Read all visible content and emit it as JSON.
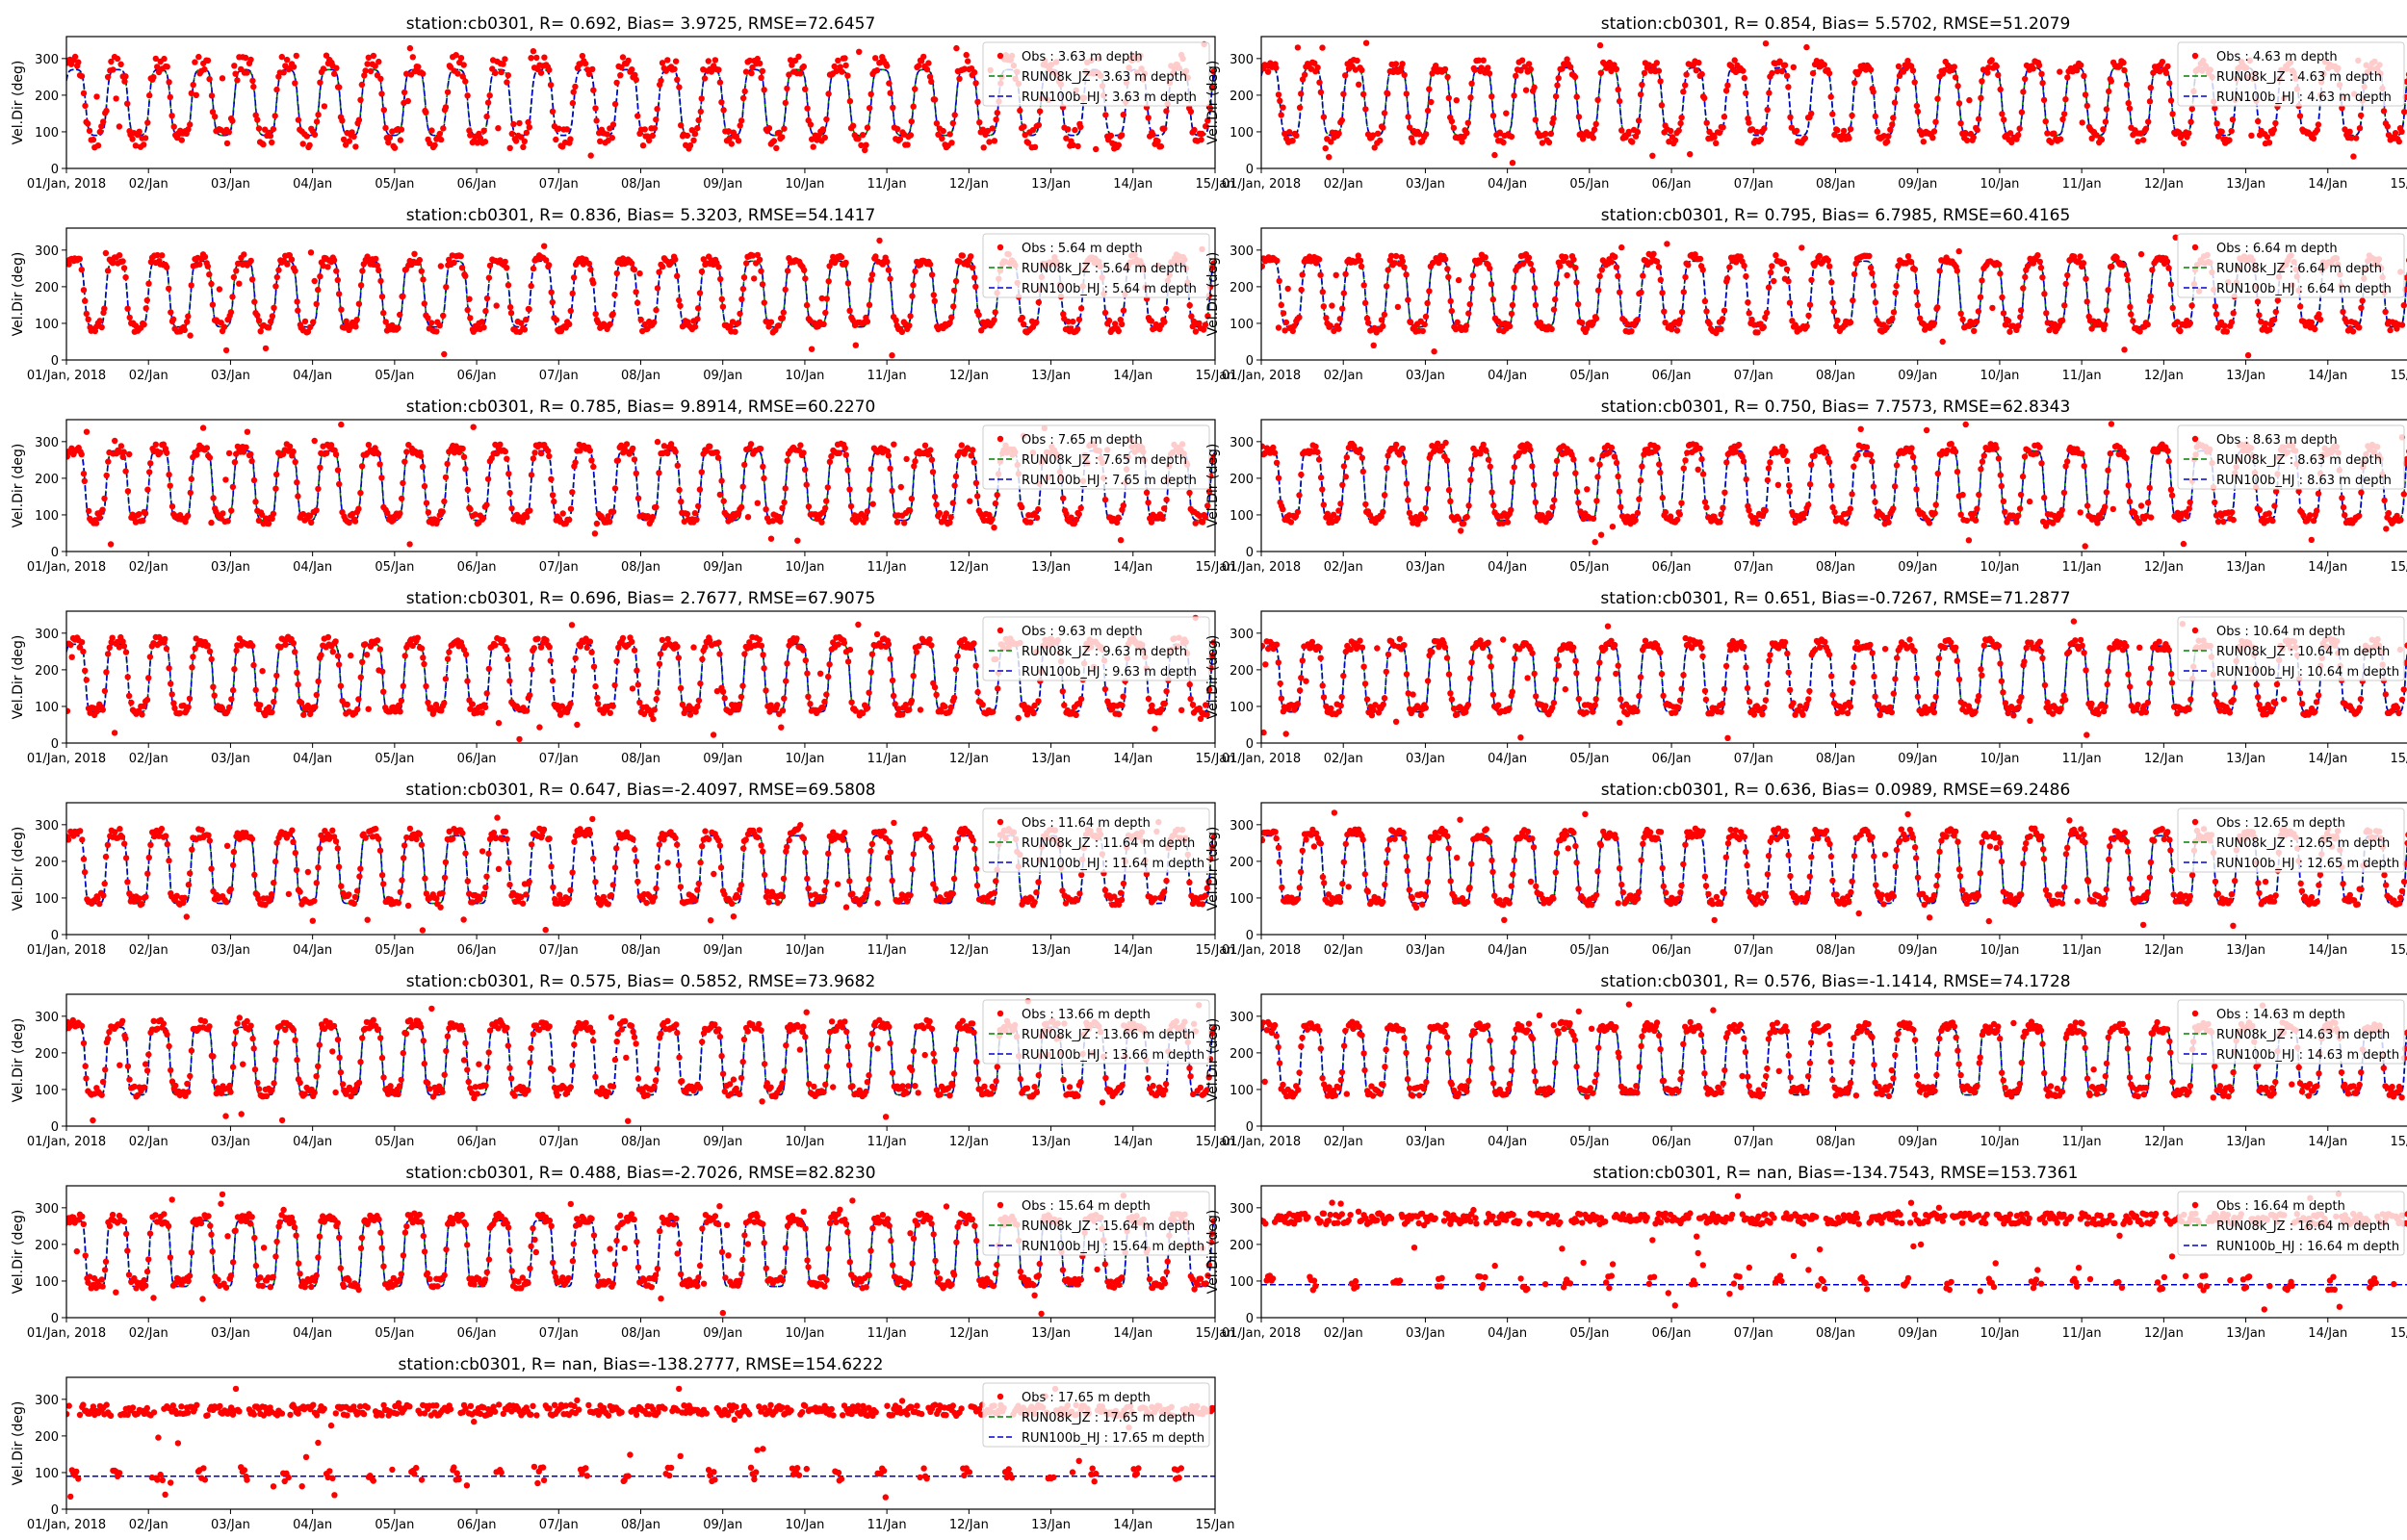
{
  "figure": {
    "x_tick_labels": [
      "01/Jan, 2018",
      "02/Jan",
      "03/Jan",
      "04/Jan",
      "05/Jan",
      "06/Jan",
      "07/Jan",
      "08/Jan",
      "09/Jan",
      "10/Jan",
      "11/Jan",
      "12/Jan",
      "13/Jan",
      "14/Jan",
      "15/Jan"
    ],
    "y_ticks": [
      0,
      100,
      200,
      300
    ],
    "ylabel": "Vel.Dir (deg)",
    "ylim": [
      0,
      360
    ],
    "xlim_days": [
      0,
      14
    ],
    "colors": {
      "obs": "#ff0000",
      "run08k": "#008000",
      "run100b": "#0000cd"
    }
  },
  "chart_data": [
    {
      "type": "line",
      "title": "station:cb0301, R= 0.692, Bias= 3.9725, RMSE=72.6457",
      "series": [
        {
          "name": "Obs : 3.63 m depth",
          "kind": "obs",
          "low": 80,
          "high": 285,
          "noise": 55
        },
        {
          "name": "RUN08k_JZ : 3.63 m depth",
          "kind": "run08k",
          "low": 90,
          "high": 270
        },
        {
          "name": "RUN100b_HJ : 3.63 m depth",
          "kind": "run100b",
          "low": 90,
          "high": 270
        }
      ]
    },
    {
      "type": "line",
      "title": "station:cb0301, R= 0.854, Bias= 5.5702, RMSE=51.2079",
      "series": [
        {
          "name": "Obs : 4.63 m depth",
          "kind": "obs",
          "low": 85,
          "high": 280,
          "noise": 35
        },
        {
          "name": "RUN08k_JZ : 4.63 m depth",
          "kind": "run08k",
          "low": 90,
          "high": 275
        },
        {
          "name": "RUN100b_HJ : 4.63 m depth",
          "kind": "run100b",
          "low": 90,
          "high": 275
        }
      ]
    },
    {
      "type": "line",
      "title": "station:cb0301, R= 0.836, Bias= 5.3203, RMSE=54.1417",
      "series": [
        {
          "name": "Obs : 5.64 m depth",
          "kind": "obs",
          "low": 90,
          "high": 275,
          "noise": 30
        },
        {
          "name": "RUN08k_JZ : 5.64 m depth",
          "kind": "run08k",
          "low": 90,
          "high": 270
        },
        {
          "name": "RUN100b_HJ : 5.64 m depth",
          "kind": "run100b",
          "low": 90,
          "high": 270
        }
      ]
    },
    {
      "type": "line",
      "title": "station:cb0301, R= 0.795, Bias= 6.7985, RMSE=60.4165",
      "series": [
        {
          "name": "Obs : 6.64 m depth",
          "kind": "obs",
          "low": 90,
          "high": 275,
          "noise": 30
        },
        {
          "name": "RUN08k_JZ : 6.64 m depth",
          "kind": "run08k",
          "low": 90,
          "high": 270
        },
        {
          "name": "RUN100b_HJ : 6.64 m depth",
          "kind": "run100b",
          "low": 90,
          "high": 270
        }
      ]
    },
    {
      "type": "line",
      "title": "station:cb0301, R= 0.785, Bias= 9.8914, RMSE=60.2270",
      "series": [
        {
          "name": "Obs : 7.65 m depth",
          "kind": "obs",
          "low": 90,
          "high": 280,
          "noise": 30
        },
        {
          "name": "RUN08k_JZ : 7.65 m depth",
          "kind": "run08k",
          "low": 85,
          "high": 275
        },
        {
          "name": "RUN100b_HJ : 7.65 m depth",
          "kind": "run100b",
          "low": 85,
          "high": 275
        }
      ]
    },
    {
      "type": "line",
      "title": "station:cb0301, R= 0.750, Bias= 7.7573, RMSE=62.8343",
      "series": [
        {
          "name": "Obs : 8.63 m depth",
          "kind": "obs",
          "low": 90,
          "high": 280,
          "noise": 30
        },
        {
          "name": "RUN08k_JZ : 8.63 m depth",
          "kind": "run08k",
          "low": 85,
          "high": 275
        },
        {
          "name": "RUN100b_HJ : 8.63 m depth",
          "kind": "run100b",
          "low": 85,
          "high": 275
        }
      ]
    },
    {
      "type": "line",
      "title": "station:cb0301, R= 0.696, Bias= 2.7677, RMSE=67.9075",
      "series": [
        {
          "name": "Obs : 9.63 m depth",
          "kind": "obs",
          "low": 90,
          "high": 275,
          "noise": 30
        },
        {
          "name": "RUN08k_JZ : 9.63 m depth",
          "kind": "run08k",
          "low": 85,
          "high": 270
        },
        {
          "name": "RUN100b_HJ : 9.63 m depth",
          "kind": "run100b",
          "low": 85,
          "high": 270
        }
      ]
    },
    {
      "type": "line",
      "title": "station:cb0301, R= 0.651, Bias=-0.7267, RMSE=71.2877",
      "series": [
        {
          "name": "Obs : 10.64 m depth",
          "kind": "obs",
          "low": 90,
          "high": 270,
          "noise": 30
        },
        {
          "name": "RUN08k_JZ : 10.64 m depth",
          "kind": "run08k",
          "low": 85,
          "high": 265
        },
        {
          "name": "RUN100b_HJ : 10.64 m depth",
          "kind": "run100b",
          "low": 85,
          "high": 265
        }
      ]
    },
    {
      "type": "line",
      "title": "station:cb0301, R= 0.647, Bias=-2.4097, RMSE=69.5808",
      "series": [
        {
          "name": "Obs : 11.64 m depth",
          "kind": "obs",
          "low": 95,
          "high": 275,
          "noise": 30
        },
        {
          "name": "RUN08k_JZ : 11.64 m depth",
          "kind": "run08k",
          "low": 85,
          "high": 270
        },
        {
          "name": "RUN100b_HJ : 11.64 m depth",
          "kind": "run100b",
          "low": 85,
          "high": 270
        }
      ]
    },
    {
      "type": "line",
      "title": "station:cb0301, R= 0.636, Bias= 0.0989, RMSE=69.2486",
      "series": [
        {
          "name": "Obs : 12.65 m depth",
          "kind": "obs",
          "low": 95,
          "high": 275,
          "noise": 30
        },
        {
          "name": "RUN08k_JZ : 12.65 m depth",
          "kind": "run08k",
          "low": 85,
          "high": 270
        },
        {
          "name": "RUN100b_HJ : 12.65 m depth",
          "kind": "run100b",
          "low": 85,
          "high": 270
        }
      ]
    },
    {
      "type": "line",
      "title": "station:cb0301, R= 0.575, Bias= 0.5852, RMSE=73.9682",
      "series": [
        {
          "name": "Obs : 13.66 m depth",
          "kind": "obs",
          "low": 95,
          "high": 275,
          "noise": 30
        },
        {
          "name": "RUN08k_JZ : 13.66 m depth",
          "kind": "run08k",
          "low": 85,
          "high": 270
        },
        {
          "name": "RUN100b_HJ : 13.66 m depth",
          "kind": "run100b",
          "low": 85,
          "high": 270
        }
      ]
    },
    {
      "type": "line",
      "title": "station:cb0301, R= 0.576, Bias=-1.1414, RMSE=74.1728",
      "series": [
        {
          "name": "Obs : 14.63 m depth",
          "kind": "obs",
          "low": 95,
          "high": 270,
          "noise": 30
        },
        {
          "name": "RUN08k_JZ : 14.63 m depth",
          "kind": "run08k",
          "low": 85,
          "high": 265
        },
        {
          "name": "RUN100b_HJ : 14.63 m depth",
          "kind": "run100b",
          "low": 85,
          "high": 265
        }
      ]
    },
    {
      "type": "line",
      "title": "station:cb0301, R= 0.488, Bias=-2.7026, RMSE=82.8230",
      "series": [
        {
          "name": "Obs : 15.64 m depth",
          "kind": "obs",
          "low": 95,
          "high": 270,
          "noise": 30
        },
        {
          "name": "RUN08k_JZ : 15.64 m depth",
          "kind": "run08k",
          "low": 85,
          "high": 265
        },
        {
          "name": "RUN100b_HJ : 15.64 m depth",
          "kind": "run100b",
          "low": 85,
          "high": 265
        }
      ]
    },
    {
      "type": "line",
      "title": "station:cb0301, R=   nan, Bias=-134.7543, RMSE=153.7361",
      "series": [
        {
          "name": "Obs : 16.64 m depth",
          "kind": "obs",
          "low": 95,
          "high": 270,
          "noise": 30
        },
        {
          "name": "RUN08k_JZ : 16.64 m depth",
          "kind": "run08k",
          "constant": 90
        },
        {
          "name": "RUN100b_HJ : 16.64 m depth",
          "kind": "run100b",
          "constant": 90
        }
      ]
    },
    {
      "type": "line",
      "title": "station:cb0301, R=   nan, Bias=-138.2777, RMSE=154.6222",
      "series": [
        {
          "name": "Obs : 17.65 m depth",
          "kind": "obs",
          "low": 95,
          "high": 270,
          "noise": 30
        },
        {
          "name": "RUN08k_JZ : 17.65 m depth",
          "kind": "run08k",
          "constant": 90
        },
        {
          "name": "RUN100b_HJ : 17.65 m depth",
          "kind": "run100b",
          "constant": 90
        }
      ]
    }
  ]
}
